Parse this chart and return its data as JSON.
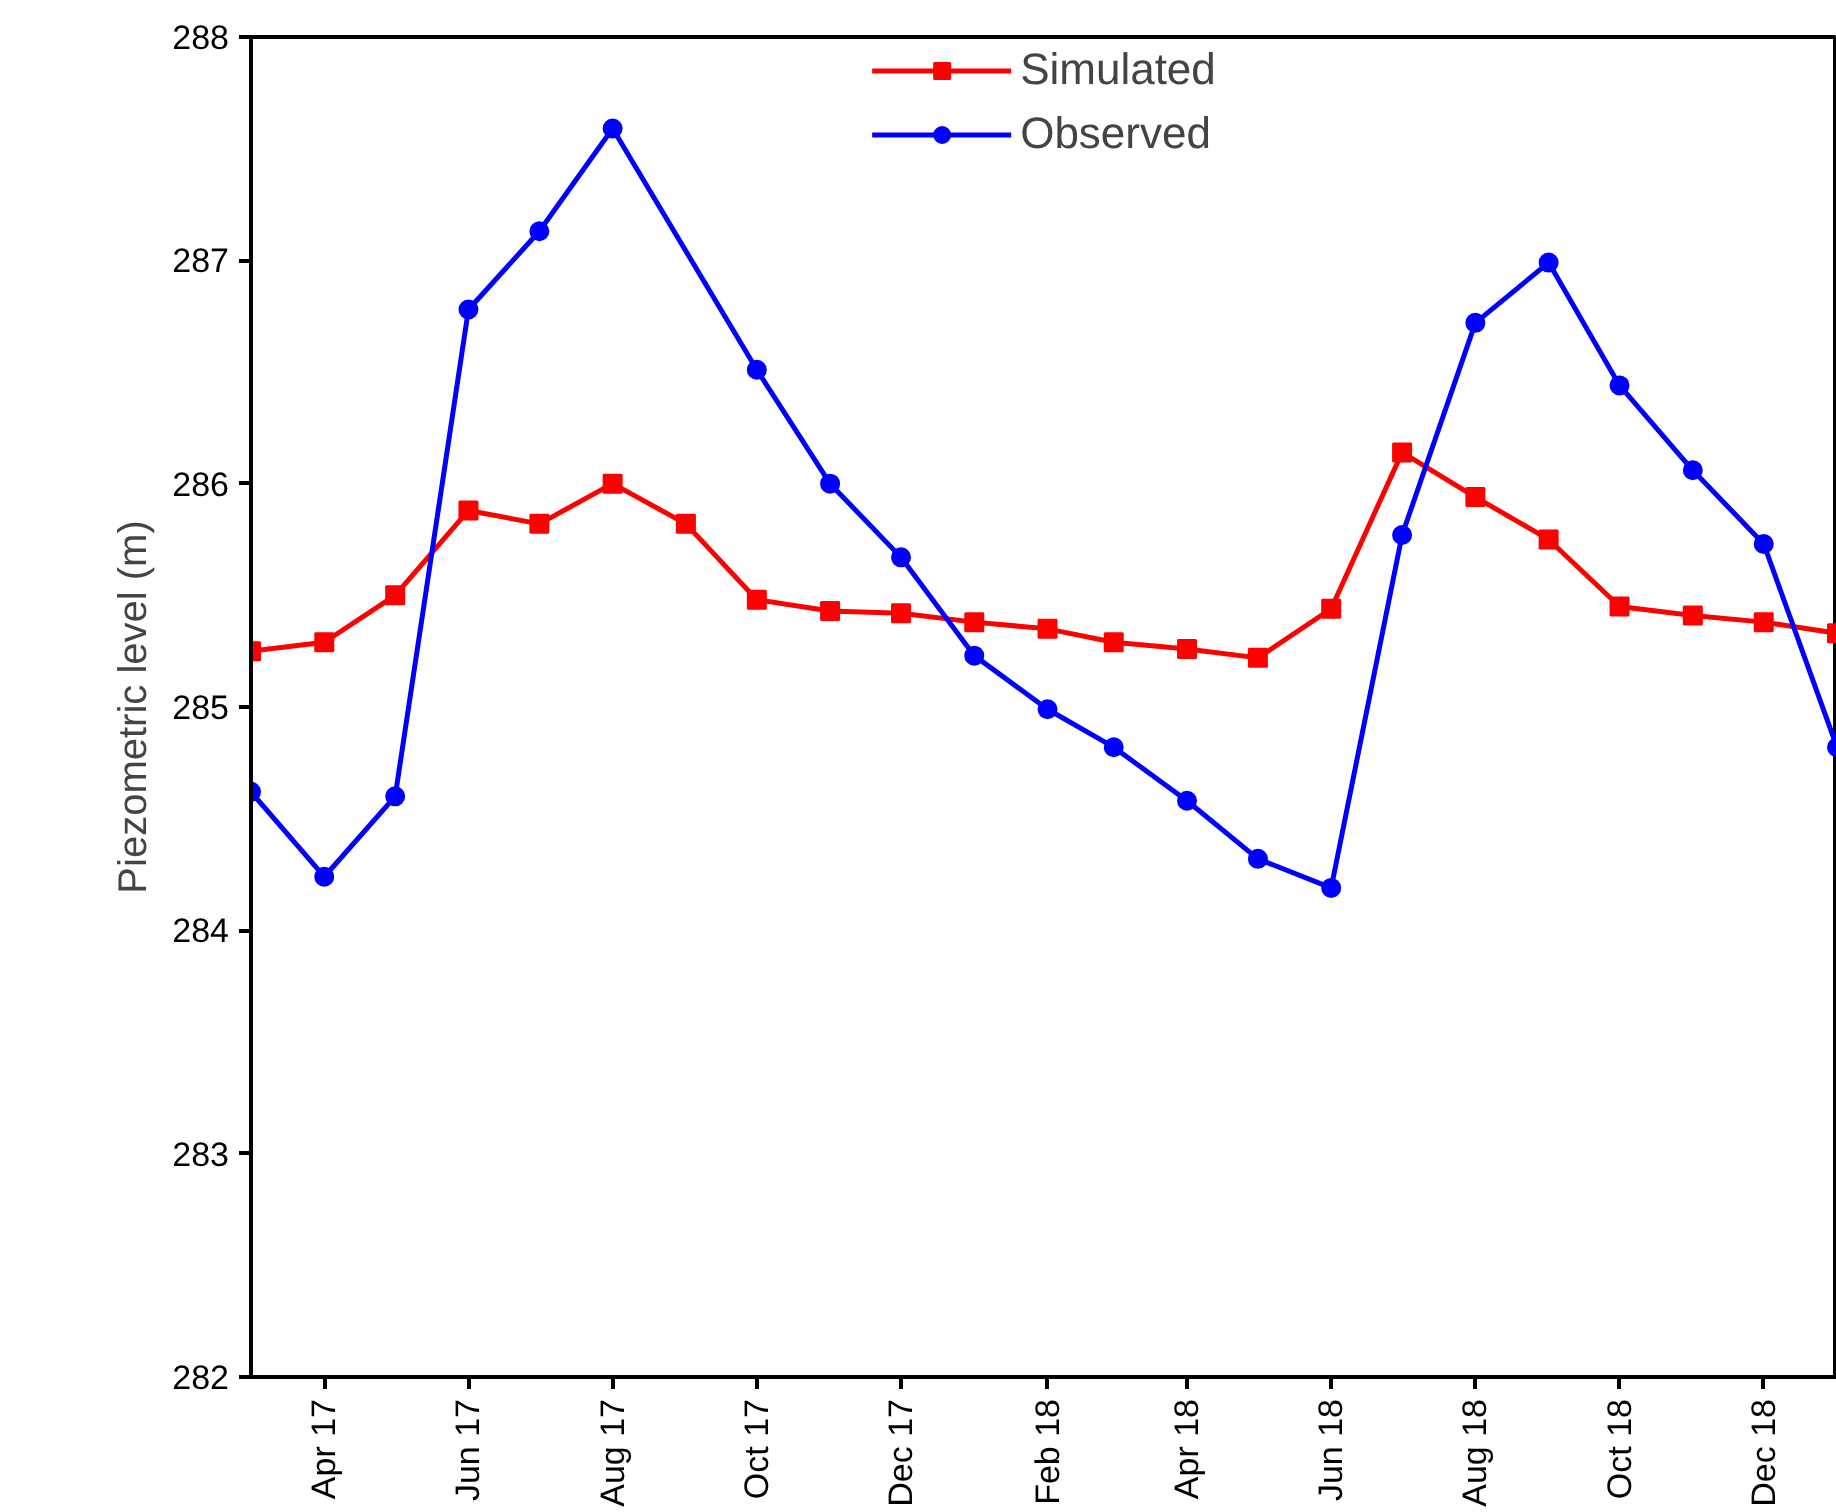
{
  "chart_data": {
    "type": "line",
    "ylabel": "Piezometric level (m)",
    "x": [
      "2017-03",
      "2017-04",
      "2017-05",
      "2017-06",
      "2017-07",
      "2017-08",
      "2017-09",
      "2017-10",
      "2017-11",
      "2017-12",
      "2018-01",
      "2018-02",
      "2018-03",
      "2018-04",
      "2018-05",
      "2018-06",
      "2018-07",
      "2018-08",
      "2018-09",
      "2018-10",
      "2018-11",
      "2018-12",
      "2019-01"
    ],
    "series": [
      {
        "name": "Simulated",
        "color": "#ff0000",
        "marker": "square",
        "values": [
          285.25,
          285.29,
          285.5,
          285.88,
          285.82,
          286.0,
          285.82,
          285.48,
          285.43,
          285.42,
          285.38,
          285.35,
          285.29,
          285.26,
          285.22,
          285.44,
          286.14,
          285.94,
          285.75,
          285.45,
          285.41,
          285.38,
          285.33
        ]
      },
      {
        "name": "Observed",
        "color": "#0000ff",
        "marker": "circle",
        "x": [
          "2017-03",
          "2017-04",
          "2017-05",
          "2017-06",
          "2017-07",
          "2017-08",
          "2017-10",
          "2017-11",
          "2017-12",
          "2018-01",
          "2018-02",
          "2018-03",
          "2018-04",
          "2018-05",
          "2018-06",
          "2018-07",
          "2018-08",
          "2018-09",
          "2018-10",
          "2018-11",
          "2018-12",
          "2019-01"
        ],
        "values": [
          284.62,
          284.24,
          284.6,
          286.78,
          287.13,
          287.59,
          286.51,
          286.0,
          285.67,
          285.23,
          284.99,
          284.82,
          284.58,
          284.32,
          284.19,
          285.77,
          286.72,
          286.99,
          286.44,
          286.06,
          285.73,
          284.82
        ]
      }
    ],
    "xlim": [
      "2017-03",
      "2019-01"
    ],
    "xticks": [
      {
        "value": "2017-04",
        "label": "Apr 17"
      },
      {
        "value": "2017-06",
        "label": "Jun 17"
      },
      {
        "value": "2017-08",
        "label": "Aug 17"
      },
      {
        "value": "2017-10",
        "label": "Oct 17"
      },
      {
        "value": "2017-12",
        "label": "Dec 17"
      },
      {
        "value": "2018-02",
        "label": "Feb 18"
      },
      {
        "value": "2018-04",
        "label": "Apr 18"
      },
      {
        "value": "2018-06",
        "label": "Jun 18"
      },
      {
        "value": "2018-08",
        "label": "Aug 18"
      },
      {
        "value": "2018-10",
        "label": "Oct 18"
      },
      {
        "value": "2018-12",
        "label": "Dec 18"
      }
    ],
    "ylim": [
      282,
      288
    ],
    "yticks": [
      282,
      283,
      284,
      285,
      286,
      287,
      288
    ],
    "grid": false,
    "legend": "top",
    "line_style": "solid"
  }
}
